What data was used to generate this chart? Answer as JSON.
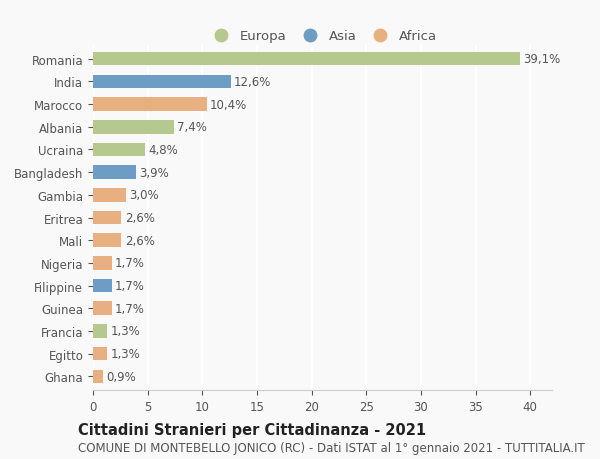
{
  "categories": [
    "Romania",
    "India",
    "Marocco",
    "Albania",
    "Ucraina",
    "Bangladesh",
    "Gambia",
    "Eritrea",
    "Mali",
    "Nigeria",
    "Filippine",
    "Guinea",
    "Francia",
    "Egitto",
    "Ghana"
  ],
  "values": [
    39.1,
    12.6,
    10.4,
    7.4,
    4.8,
    3.9,
    3.0,
    2.6,
    2.6,
    1.7,
    1.7,
    1.7,
    1.3,
    1.3,
    0.9
  ],
  "labels": [
    "39,1%",
    "12,6%",
    "10,4%",
    "7,4%",
    "4,8%",
    "3,9%",
    "3,0%",
    "2,6%",
    "2,6%",
    "1,7%",
    "1,7%",
    "1,7%",
    "1,3%",
    "1,3%",
    "0,9%"
  ],
  "continent": [
    "Europa",
    "Asia",
    "Africa",
    "Europa",
    "Europa",
    "Asia",
    "Africa",
    "Africa",
    "Africa",
    "Africa",
    "Asia",
    "Africa",
    "Europa",
    "Africa",
    "Africa"
  ],
  "colors": {
    "Europa": "#b5c98e",
    "Asia": "#6d9dc5",
    "Africa": "#e8b080"
  },
  "xlim": [
    0,
    42
  ],
  "xticks": [
    0,
    5,
    10,
    15,
    20,
    25,
    30,
    35,
    40
  ],
  "title": "Cittadini Stranieri per Cittadinanza - 2021",
  "subtitle": "COMUNE DI MONTEBELLO JONICO (RC) - Dati ISTAT al 1° gennaio 2021 - TUTTITALIA.IT",
  "background_color": "#f9f9f9",
  "grid_color": "#ffffff",
  "bar_height": 0.6,
  "title_fontsize": 10.5,
  "subtitle_fontsize": 8.5,
  "tick_fontsize": 8.5,
  "label_fontsize": 8.5,
  "legend_fontsize": 9.5
}
